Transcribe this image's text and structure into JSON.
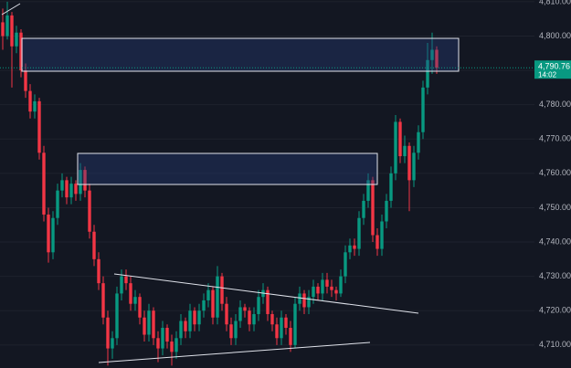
{
  "chart_data": {
    "type": "candlestick",
    "ylim": [
      4703.3,
      4810.5
    ],
    "yticks": [
      {
        "value": 4710,
        "label": "4,710.00"
      },
      {
        "value": 4720,
        "label": "4,720.00"
      },
      {
        "value": 4730,
        "label": "4,730.00"
      },
      {
        "value": 4740,
        "label": "4,740.00"
      },
      {
        "value": 4750,
        "label": "4,750.00"
      },
      {
        "value": 4760,
        "label": "4,760.00"
      },
      {
        "value": 4770,
        "label": "4,770.00"
      },
      {
        "value": 4780,
        "label": "4,780.00"
      },
      {
        "value": 4790,
        "label": "4,790.00"
      },
      {
        "value": 4800,
        "label": "4,800.00"
      },
      {
        "value": 4810,
        "label": "4,810.00"
      }
    ],
    "grid": true,
    "up_color": "#089981",
    "down_color": "#f23645",
    "current_price": {
      "value": 4790.76,
      "label": "4,790.76"
    },
    "countdown": "14:02",
    "candles": [
      [
        4804,
        4808,
        4796,
        4800
      ],
      [
        4800,
        4810,
        4799,
        4806
      ],
      [
        4806,
        4807,
        4785,
        4797
      ],
      [
        4797,
        4803,
        4795,
        4801
      ],
      [
        4801,
        4802,
        4788,
        4790
      ],
      [
        4790,
        4792,
        4782,
        4784
      ],
      [
        4784,
        4786,
        4776,
        4778
      ],
      [
        4778,
        4783,
        4776,
        4781
      ],
      [
        4781,
        4782,
        4764,
        4766
      ],
      [
        4766,
        4768,
        4746,
        4748
      ],
      [
        4748,
        4750,
        4734,
        4737
      ],
      [
        4737,
        4749,
        4735,
        4747
      ],
      [
        4747,
        4757,
        4745,
        4755
      ],
      [
        4755,
        4760,
        4753,
        4758
      ],
      [
        4758,
        4759,
        4751,
        4753
      ],
      [
        4753,
        4759,
        4751,
        4757
      ],
      [
        4757,
        4758,
        4752,
        4754
      ],
      [
        4754,
        4763,
        4752,
        4761
      ],
      [
        4761,
        4762,
        4753,
        4755
      ],
      [
        4755,
        4757,
        4741,
        4743
      ],
      [
        4743,
        4745,
        4733,
        4735
      ],
      [
        4735,
        4737,
        4726,
        4728
      ],
      [
        4728,
        4730,
        4716,
        4718
      ],
      [
        4718,
        4720,
        4704,
        4709
      ],
      [
        4709,
        4714,
        4706,
        4712
      ],
      [
        4712,
        4727,
        4710,
        4725
      ],
      [
        4725,
        4732,
        4723,
        4730
      ],
      [
        4730,
        4732,
        4726,
        4728
      ],
      [
        4728,
        4730,
        4720,
        4722
      ],
      [
        4722,
        4726,
        4720,
        4724
      ],
      [
        4724,
        4725,
        4716,
        4718
      ],
      [
        4718,
        4720,
        4711,
        4713
      ],
      [
        4713,
        4722,
        4711,
        4720
      ],
      [
        4720,
        4721,
        4710,
        4712
      ],
      [
        4712,
        4714,
        4705,
        4709
      ],
      [
        4709,
        4717,
        4707,
        4715
      ],
      [
        4715,
        4716,
        4709,
        4711
      ],
      [
        4711,
        4713,
        4704,
        4708
      ],
      [
        4708,
        4714,
        4706,
        4712
      ],
      [
        4712,
        4719,
        4710,
        4717
      ],
      [
        4717,
        4718,
        4712,
        4714
      ],
      [
        4714,
        4722,
        4712,
        4720
      ],
      [
        4720,
        4721,
        4714,
        4716
      ],
      [
        4716,
        4722,
        4714,
        4720
      ],
      [
        4720,
        4725,
        4718,
        4723
      ],
      [
        4723,
        4728,
        4721,
        4726
      ],
      [
        4726,
        4727,
        4716,
        4718
      ],
      [
        4718,
        4733,
        4716,
        4730
      ],
      [
        4730,
        4731,
        4720,
        4722
      ],
      [
        4722,
        4724,
        4714,
        4716
      ],
      [
        4716,
        4718,
        4710,
        4712
      ],
      [
        4712,
        4719,
        4710,
        4717
      ],
      [
        4717,
        4723,
        4715,
        4721
      ],
      [
        4721,
        4722,
        4718,
        4720
      ],
      [
        4720,
        4721,
        4714,
        4716
      ],
      [
        4716,
        4721,
        4714,
        4719
      ],
      [
        4719,
        4726,
        4717,
        4724
      ],
      [
        4724,
        4728,
        4722,
        4726
      ],
      [
        4726,
        4727,
        4717,
        4719
      ],
      [
        4719,
        4720,
        4714,
        4716
      ],
      [
        4716,
        4718,
        4710,
        4712
      ],
      [
        4712,
        4720,
        4710,
        4718
      ],
      [
        4718,
        4719,
        4713,
        4715
      ],
      [
        4715,
        4717,
        4708,
        4710
      ],
      [
        4710,
        4724,
        4709,
        4722
      ],
      [
        4722,
        4727,
        4720,
        4725
      ],
      [
        4725,
        4726,
        4719,
        4721
      ],
      [
        4721,
        4726,
        4719,
        4724
      ],
      [
        4724,
        4729,
        4722,
        4727
      ],
      [
        4727,
        4728,
        4723,
        4725
      ],
      [
        4725,
        4731,
        4723,
        4729
      ],
      [
        4729,
        4731,
        4725,
        4727
      ],
      [
        4727,
        4729,
        4724,
        4726
      ],
      [
        4726,
        4727,
        4723,
        4725
      ],
      [
        4725,
        4732,
        4724,
        4730
      ],
      [
        4730,
        4739,
        4728,
        4737
      ],
      [
        4737,
        4741,
        4735,
        4739
      ],
      [
        4739,
        4741,
        4736,
        4738
      ],
      [
        4738,
        4749,
        4736,
        4747
      ],
      [
        4747,
        4754,
        4745,
        4752
      ],
      [
        4752,
        4760,
        4750,
        4758
      ],
      [
        4758,
        4759,
        4740,
        4742
      ],
      [
        4742,
        4744,
        4736,
        4738
      ],
      [
        4738,
        4748,
        4736,
        4746
      ],
      [
        4746,
        4754,
        4744,
        4752
      ],
      [
        4752,
        4762,
        4750,
        4760
      ],
      [
        4760,
        4777,
        4758,
        4775
      ],
      [
        4775,
        4776,
        4763,
        4765
      ],
      [
        4765,
        4771,
        4763,
        4768
      ],
      [
        4768,
        4769,
        4749,
        4758
      ],
      [
        4758,
        4768,
        4756,
        4766
      ],
      [
        4766,
        4774,
        4764,
        4772
      ],
      [
        4772,
        4787,
        4770,
        4785
      ],
      [
        4785,
        4798,
        4783,
        4793
      ],
      [
        4793,
        4801,
        4789,
        4796
      ],
      [
        4796,
        4797,
        4789,
        4790.76
      ]
    ]
  }
}
